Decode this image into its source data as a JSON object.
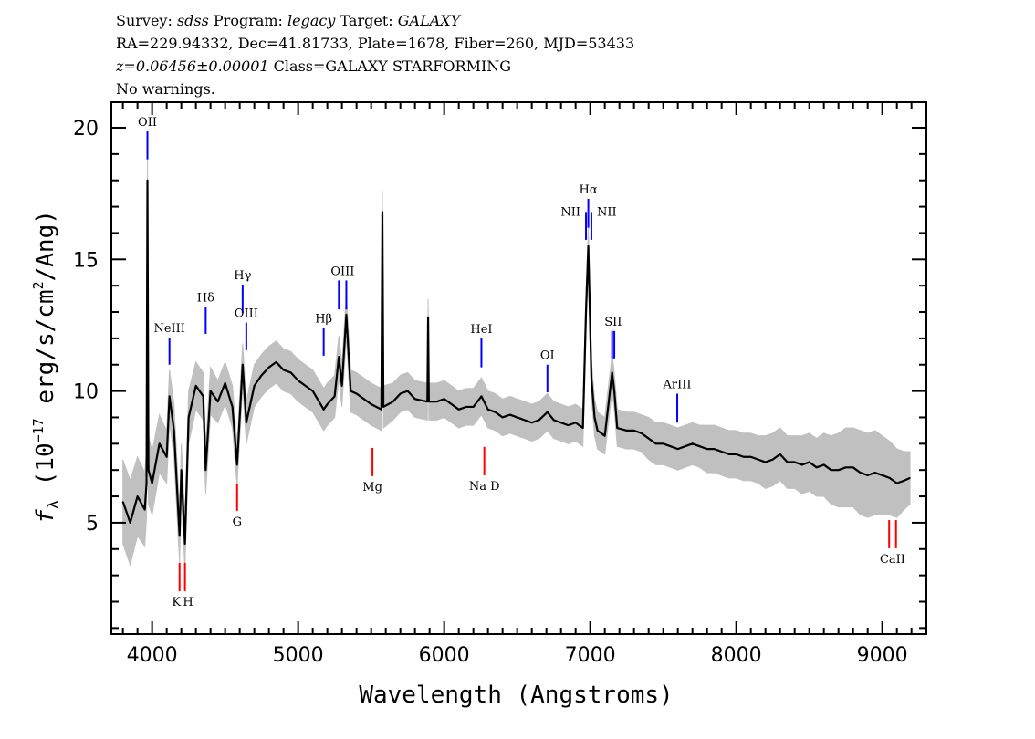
{
  "header": {
    "line1": {
      "survey_label": "Survey: ",
      "survey": "sdss",
      "program_label": " Program: ",
      "program": "legacy",
      "target_label": " Target: ",
      "target": "GALAXY"
    },
    "line2": "RA=229.94332, Dec=41.81733, Plate=1678, Fiber=260, MJD=53433",
    "line3": {
      "redshift": "z=0.06456±0.00001",
      "class": " Class=GALAXY STARFORMING"
    },
    "line4": "No warnings."
  },
  "chart_data": {
    "type": "line",
    "title": "",
    "xlabel": "Wavelength (Angstroms)",
    "ylabel": "f_λ (10^-17 erg/s/cm^2/Ang)",
    "ylabel_parts": {
      "f": "f",
      "sub": "λ",
      "pre": " (10",
      "exp": "−17",
      "mid": " erg/s/cm",
      "exp2": "2",
      "post": "/Ang)"
    },
    "xlim": [
      3721,
      9302
    ],
    "ylim": [
      0.77,
      20.97
    ],
    "xticks": [
      4000,
      5000,
      6000,
      7000,
      8000,
      9000
    ],
    "xtick_labels": [
      "4000",
      "5000",
      "6000",
      "7000",
      "8000",
      "9000"
    ],
    "yticks": [
      5,
      10,
      15,
      20
    ],
    "ytick_labels": [
      "5",
      "10",
      "15",
      "20"
    ],
    "grid": false,
    "colors": {
      "flux": "#000000",
      "error": "#c0c0c0",
      "emission": "#0000ff",
      "absorption": "#ff0000"
    },
    "series": [
      {
        "x": [
          3800,
          3850,
          3900,
          3950,
          3962,
          3968,
          3975,
          4000,
          4050,
          4100,
          4119,
          4150,
          4188,
          4200,
          4225,
          4250,
          4300,
          4350,
          4367,
          4400,
          4450,
          4500,
          4550,
          4582,
          4620,
          4645,
          4700,
          4750,
          4800,
          4850,
          4900,
          4950,
          5000,
          5050,
          5100,
          5175,
          5200,
          5250,
          5279,
          5300,
          5330,
          5360,
          5400,
          5450,
          5500,
          5570,
          5577,
          5584,
          5650,
          5700,
          5750,
          5800,
          5885,
          5890,
          5895,
          5950,
          6000,
          6050,
          6100,
          6150,
          6200,
          6255,
          6300,
          6350,
          6400,
          6450,
          6500,
          6550,
          6600,
          6650,
          6707,
          6750,
          6800,
          6850,
          6900,
          6950,
          6971,
          6987,
          7008,
          7030,
          7050,
          7100,
          7150,
          7165,
          7185,
          7250,
          7300,
          7350,
          7400,
          7450,
          7500,
          7550,
          7600,
          7650,
          7700,
          7750,
          7800,
          7850,
          7900,
          7950,
          8000,
          8050,
          8100,
          8150,
          8200,
          8250,
          8300,
          8350,
          8400,
          8450,
          8500,
          8550,
          8600,
          8650,
          8700,
          8750,
          8800,
          8850,
          8900,
          8950,
          9000,
          9050,
          9100,
          9150,
          9190
        ],
        "flux": [
          5.8,
          5.0,
          6.0,
          5.5,
          6.5,
          18.0,
          7.0,
          6.5,
          8.0,
          7.5,
          9.8,
          8.5,
          4.5,
          7.0,
          4.2,
          9.0,
          10.2,
          9.8,
          7.0,
          10.0,
          9.6,
          10.3,
          9.4,
          7.2,
          11.0,
          8.8,
          10.2,
          10.6,
          10.9,
          11.1,
          10.8,
          10.7,
          10.4,
          10.2,
          10.0,
          9.3,
          9.5,
          9.8,
          11.3,
          10.2,
          12.9,
          10.0,
          9.9,
          9.7,
          9.5,
          9.3,
          16.8,
          9.4,
          9.6,
          9.9,
          10.0,
          9.7,
          9.6,
          12.8,
          9.6,
          9.6,
          9.7,
          9.5,
          9.3,
          9.4,
          9.4,
          9.8,
          9.3,
          9.2,
          9.0,
          9.1,
          9.0,
          8.9,
          8.8,
          8.9,
          9.2,
          8.9,
          8.8,
          8.7,
          8.8,
          8.6,
          13.0,
          15.5,
          10.5,
          9.0,
          8.5,
          8.3,
          10.7,
          10.0,
          8.6,
          8.5,
          8.5,
          8.4,
          8.2,
          8.0,
          8.0,
          7.9,
          7.8,
          7.9,
          8.0,
          7.9,
          7.8,
          7.8,
          7.7,
          7.6,
          7.6,
          7.5,
          7.5,
          7.4,
          7.3,
          7.4,
          7.6,
          7.3,
          7.3,
          7.2,
          7.3,
          7.1,
          7.2,
          7.0,
          7.0,
          7.1,
          7.1,
          6.9,
          6.8,
          6.9,
          6.8,
          6.7,
          6.5,
          6.6,
          6.7
        ],
        "error": [
          1.6,
          1.6,
          1.5,
          1.4,
          1.3,
          1.3,
          1.3,
          1.2,
          1.1,
          1.0,
          1.0,
          1.0,
          1.0,
          1.0,
          1.0,
          1.0,
          0.9,
          0.9,
          0.9,
          0.9,
          0.8,
          0.8,
          0.8,
          0.8,
          0.8,
          0.8,
          0.8,
          0.8,
          0.8,
          0.8,
          0.8,
          0.8,
          0.8,
          0.8,
          0.8,
          0.8,
          0.8,
          0.8,
          0.8,
          0.8,
          0.8,
          0.8,
          0.8,
          0.8,
          0.8,
          0.8,
          0.8,
          0.8,
          0.7,
          0.7,
          0.7,
          0.7,
          0.7,
          0.7,
          0.7,
          0.7,
          0.7,
          0.7,
          0.7,
          0.7,
          0.7,
          0.7,
          0.7,
          0.7,
          0.7,
          0.7,
          0.7,
          0.7,
          0.7,
          0.7,
          0.7,
          0.7,
          0.7,
          0.7,
          0.7,
          0.7,
          0.7,
          0.7,
          0.7,
          0.7,
          0.7,
          0.7,
          0.7,
          0.7,
          0.7,
          0.7,
          0.7,
          0.7,
          0.8,
          0.8,
          0.8,
          0.8,
          0.8,
          0.8,
          0.8,
          0.8,
          0.9,
          0.9,
          0.9,
          0.9,
          0.9,
          0.9,
          0.9,
          0.9,
          1.0,
          1.0,
          1.0,
          1.0,
          1.0,
          1.1,
          1.1,
          1.1,
          1.2,
          1.3,
          1.4,
          1.5,
          1.5,
          1.6,
          1.6,
          1.6,
          1.5,
          1.4,
          1.3,
          1.1,
          1.0
        ]
      }
    ],
    "lines": [
      {
        "label": "OII",
        "type": "emission",
        "wavelengths": [
          3968
        ],
        "range": [
          18.8,
          19.86
        ]
      },
      {
        "label": "NeIII",
        "type": "emission",
        "wavelengths": [
          4119
        ],
        "range": [
          11.0,
          12.03
        ]
      },
      {
        "label": "Hδ",
        "type": "emission",
        "wavelengths": [
          4367
        ],
        "range": [
          12.17,
          13.2
        ]
      },
      {
        "label": "Hγ",
        "type": "emission",
        "wavelengths": [
          4620
        ],
        "range": [
          12.97,
          14.04
        ]
      },
      {
        "label": "OIII",
        "type": "emission",
        "wavelengths": [
          4645
        ],
        "range": [
          11.55,
          12.6
        ]
      },
      {
        "label": "Hβ",
        "type": "emission",
        "wavelengths": [
          5175
        ],
        "range": [
          11.34,
          12.4
        ]
      },
      {
        "label": "OIII",
        "type": "emission",
        "wavelengths": [
          5279,
          5330
        ],
        "range": [
          13.1,
          14.2
        ]
      },
      {
        "label": "HeI",
        "type": "emission",
        "wavelengths": [
          6255
        ],
        "range": [
          10.9,
          12.0
        ]
      },
      {
        "label": "OI",
        "type": "emission",
        "wavelengths": [
          6707
        ],
        "range": [
          9.95,
          11.0
        ]
      },
      {
        "label": "NII",
        "type": "emission",
        "wavelengths": [
          6971
        ],
        "range": [
          15.74,
          16.8
        ],
        "align": "left"
      },
      {
        "label": "Hα",
        "type": "emission",
        "wavelengths": [
          6987
        ],
        "range": [
          16.2,
          17.3
        ]
      },
      {
        "label": "NII",
        "type": "emission",
        "wavelengths": [
          7008
        ],
        "range": [
          15.74,
          16.8
        ],
        "align": "right"
      },
      {
        "label": "SII",
        "type": "emission",
        "wavelengths": [
          7150,
          7165
        ],
        "range": [
          11.24,
          12.28
        ]
      },
      {
        "label": "ArIII",
        "type": "emission",
        "wavelengths": [
          7596
        ],
        "range": [
          8.8,
          9.9
        ]
      },
      {
        "label": "K",
        "type": "absorption",
        "wavelengths": [
          4188
        ],
        "range": [
          2.4,
          3.48
        ]
      },
      {
        "label": "H",
        "type": "absorption",
        "wavelengths": [
          4225
        ],
        "range": [
          2.4,
          3.48
        ]
      },
      {
        "label": "G",
        "type": "absorption",
        "wavelengths": [
          4582
        ],
        "range": [
          5.45,
          6.49
        ]
      },
      {
        "label": "Mg",
        "type": "absorption",
        "wavelengths": [
          5509
        ],
        "range": [
          6.77,
          7.84
        ]
      },
      {
        "label": "Na  D",
        "type": "absorption",
        "wavelengths": [
          6275
        ],
        "range": [
          6.8,
          7.88
        ]
      },
      {
        "label": "CaII",
        "type": "absorption",
        "wavelengths": [
          9047,
          9094
        ],
        "range": [
          4.03,
          5.1
        ]
      }
    ]
  }
}
